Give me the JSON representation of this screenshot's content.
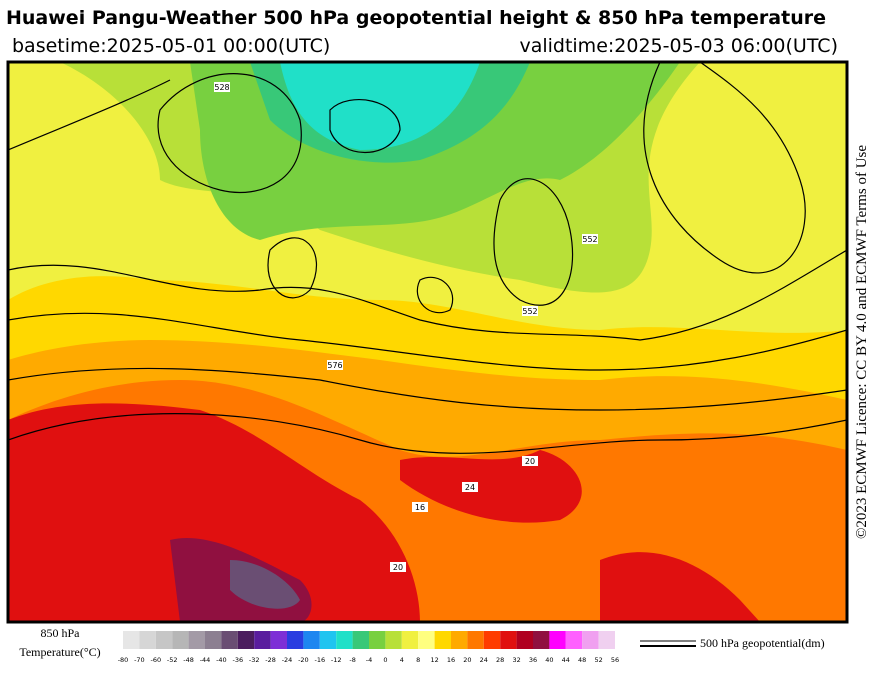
{
  "header": {
    "title": "Huawei Pangu-Weather 500 hPa geopotential height & 850 hPa temperature",
    "basetime": "basetime:2025-05-01 00:00(UTC)",
    "validtime": "validtime:2025-05-03 06:00(UTC)"
  },
  "license": "©2023 ECMWF Licence: CC BY 4.0 and ECMWF Terms of Use",
  "map": {
    "contour_labels": [
      "528",
      "552",
      "576",
      "552",
      "20",
      "16",
      "24",
      "20"
    ]
  },
  "colorbar": {
    "title_line1": "850 hPa",
    "title_line2": "Temperature(°C)",
    "ticks": [
      "-80",
      "-70",
      "-60",
      "-52",
      "-48",
      "-44",
      "-40",
      "-36",
      "-32",
      "-28",
      "-24",
      "-20",
      "-16",
      "-12",
      "-8",
      "-4",
      "0",
      "4",
      "8",
      "12",
      "16",
      "20",
      "24",
      "28",
      "32",
      "36",
      "40",
      "44",
      "48",
      "52",
      "56"
    ],
    "colors": [
      "#e6e6e6",
      "#d6d6d6",
      "#c6c6c6",
      "#b6b6b6",
      "#a39aa6",
      "#8c7f91",
      "#6a4e73",
      "#4b1d5e",
      "#5a1d9e",
      "#7d2fd6",
      "#2a3de0",
      "#1e86f0",
      "#20c4f0",
      "#20e0c8",
      "#38c878",
      "#78d040",
      "#b8e038",
      "#f0f040",
      "#ffff80",
      "#ffd800",
      "#ffaa00",
      "#ff7800",
      "#ff3c00",
      "#e01010",
      "#b00020",
      "#901040",
      "#ff00ff",
      "#ff60ff",
      "#f0a0f0",
      "#f0d0f0"
    ]
  },
  "contour_legend": "500 hPa geopotential(dm)"
}
